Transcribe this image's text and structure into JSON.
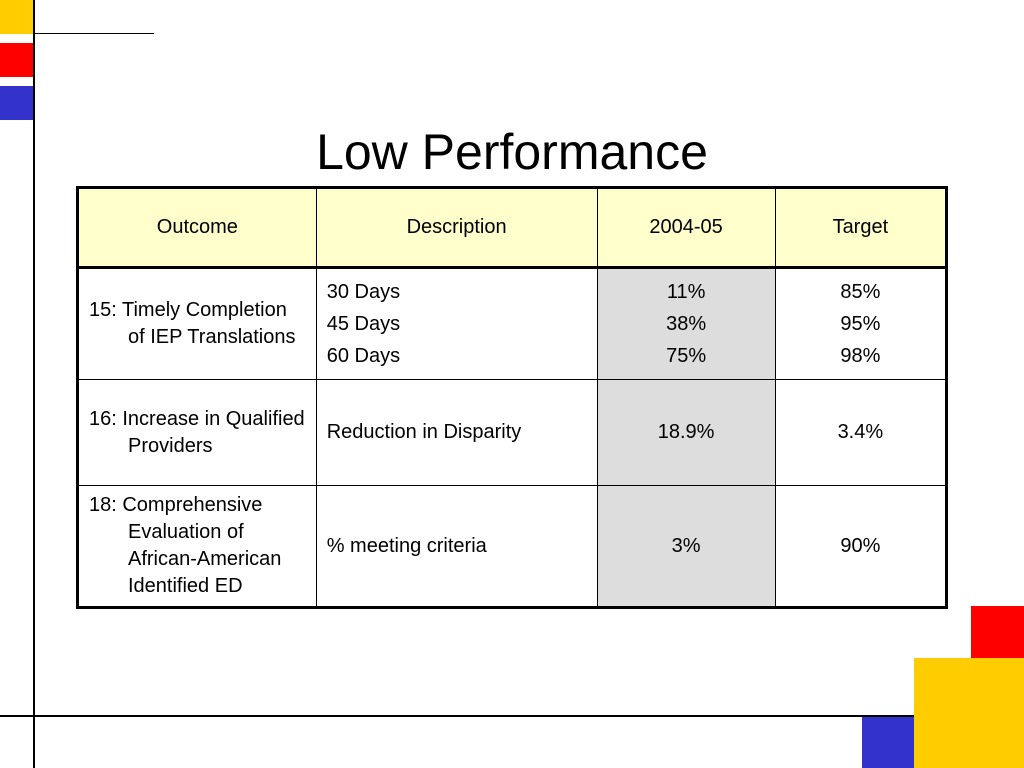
{
  "slide": {
    "title": "Low Performance",
    "colors": {
      "yellow": "#ffcc00",
      "red": "#ff0000",
      "blue": "#3333cc",
      "header_fill": "#ffffcc",
      "shaded_cell": "#dddddd"
    }
  },
  "table": {
    "headers": [
      "Outcome",
      "Description",
      "2004-05",
      "Target"
    ],
    "rows": [
      {
        "outcome": "15: Timely Completion of IEP Translations",
        "descriptions": [
          "30 Days",
          "45 Days",
          "60 Days"
        ],
        "values_2004_05": [
          "11%",
          "38%",
          "75%"
        ],
        "targets": [
          "85%",
          "95%",
          "98%"
        ]
      },
      {
        "outcome": "16: Increase in Qualified Providers",
        "descriptions": [
          "Reduction in Disparity"
        ],
        "values_2004_05": [
          "18.9%"
        ],
        "targets": [
          "3.4%"
        ]
      },
      {
        "outcome": "18: Comprehensive Evaluation of African-American Identified ED",
        "descriptions": [
          "% meeting criteria"
        ],
        "values_2004_05": [
          "3%"
        ],
        "targets": [
          "90%"
        ]
      }
    ]
  }
}
